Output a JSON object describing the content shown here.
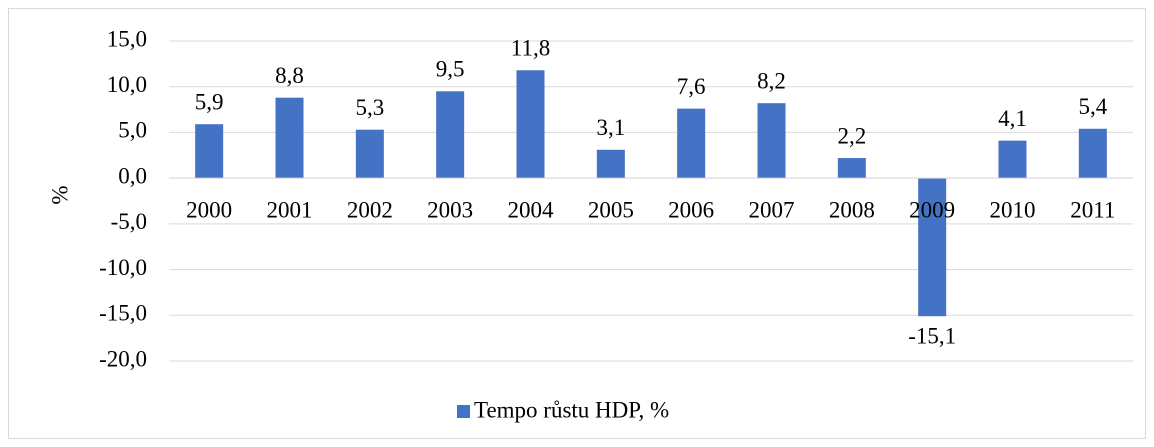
{
  "chart_data": {
    "type": "bar",
    "y_label": "%",
    "categories": [
      "2000",
      "2001",
      "2002",
      "2003",
      "2004",
      "2005",
      "2006",
      "2007",
      "2008",
      "2009",
      "2010",
      "2011"
    ],
    "series": [
      {
        "name": "Tempo růstu HDP, %",
        "color": "#4472c4",
        "values": [
          5.9,
          8.8,
          5.3,
          9.5,
          11.8,
          3.1,
          7.6,
          8.2,
          2.2,
          -15.1,
          4.1,
          5.4
        ],
        "value_labels": [
          "5,9",
          "8,8",
          "5,3",
          "9,5",
          "11,8",
          "3,1",
          "7,6",
          "8,2",
          "2,2",
          "-15,1",
          "4,1",
          "5,4"
        ]
      }
    ],
    "ylim": [
      -20,
      15
    ],
    "yticks": [
      {
        "value": -20,
        "label": "-20,0"
      },
      {
        "value": -15,
        "label": "-15,0"
      },
      {
        "value": -10,
        "label": "-10,0"
      },
      {
        "value": -5,
        "label": "-5,0"
      },
      {
        "value": 0,
        "label": "0,0"
      },
      {
        "value": 5,
        "label": "5,0"
      },
      {
        "value": 10,
        "label": "10,0"
      },
      {
        "value": 15,
        "label": "15,0"
      }
    ],
    "grid": true,
    "legend": "bottom"
  }
}
